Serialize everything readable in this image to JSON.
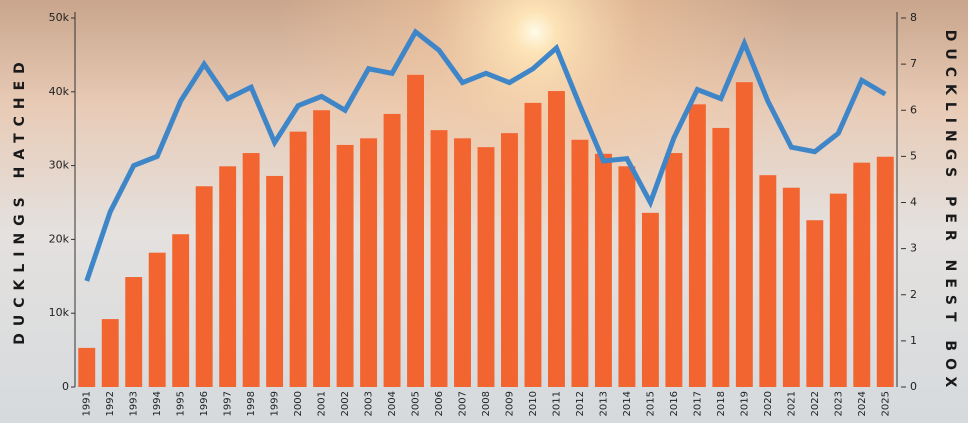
{
  "chart_data": {
    "type": "bar_line",
    "y_label": "DUCKLINGS HATCHED",
    "y2_label": "DUCKLINGS PER NEST BOX",
    "categories": [
      "1991",
      "1992",
      "1993",
      "1994",
      "1995",
      "1996",
      "1997",
      "1998",
      "1999",
      "2000",
      "2001",
      "2002",
      "2003",
      "2004",
      "2005",
      "2006",
      "2007",
      "2008",
      "2009",
      "2010",
      "2011",
      "2012",
      "2013",
      "2014",
      "2015",
      "2016",
      "2017",
      "2018",
      "2019",
      "2020",
      "2021",
      "2022",
      "2023",
      "2024",
      "2025"
    ],
    "series": [
      {
        "type": "bar",
        "color": "#f26430",
        "values": [
          5300,
          9200,
          14900,
          18200,
          20700,
          27200,
          29900,
          31700,
          28600,
          34600,
          37500,
          32800,
          33700,
          37000,
          42300,
          34800,
          33700,
          32500,
          34400,
          38500,
          40100,
          33500,
          31600,
          29900,
          23600,
          31700,
          38300,
          35100,
          41300,
          28700,
          27000,
          22600,
          26200,
          30400,
          31200
        ]
      },
      {
        "type": "line",
        "axis": "y2",
        "color": "#3f86c8",
        "values": [
          2.3,
          3.8,
          4.8,
          5.0,
          6.2,
          7.0,
          6.25,
          6.5,
          5.3,
          6.1,
          6.3,
          6.0,
          6.9,
          6.8,
          7.7,
          7.3,
          6.6,
          6.8,
          6.6,
          6.9,
          7.35,
          6.1,
          4.9,
          4.95,
          4.0,
          5.4,
          6.45,
          6.25,
          7.45,
          6.2,
          5.2,
          5.1,
          5.5,
          6.65,
          6.35
        ]
      }
    ],
    "ylim": [
      0,
      50000
    ],
    "yticks": [
      {
        "value": 0,
        "label": "0"
      },
      {
        "value": 10000,
        "label": "10k"
      },
      {
        "value": 20000,
        "label": "20k"
      },
      {
        "value": 30000,
        "label": "30k"
      },
      {
        "value": 40000,
        "label": "40k"
      },
      {
        "value": 50000,
        "label": "50k"
      }
    ],
    "y2lim": [
      0,
      8
    ],
    "y2ticks": [
      0,
      1,
      2,
      3,
      4,
      5,
      6,
      7,
      8
    ]
  }
}
